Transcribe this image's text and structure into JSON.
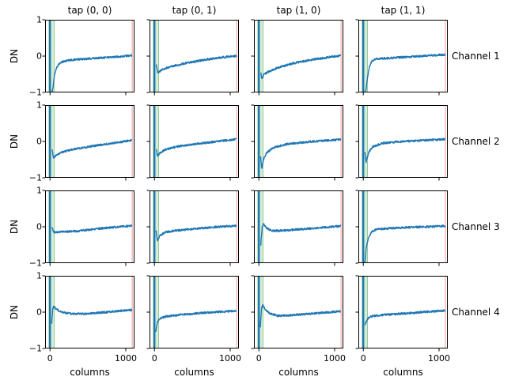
{
  "figure": {
    "col_titles": [
      "tap (0, 0)",
      "tap (0, 1)",
      "tap (1, 0)",
      "tap (1, 1)"
    ],
    "row_labels": [
      "Channel 1",
      "Channel 2",
      "Channel 3",
      "Channel 4"
    ],
    "ylabel": "DN",
    "xlabel": "columns",
    "ytick_labels": [
      "1",
      "0",
      "−1"
    ],
    "xtick_labels": [
      "0",
      "1000"
    ]
  },
  "chart_data": {
    "type": "line",
    "title": "",
    "grid": {
      "rows": 4,
      "cols": 4
    },
    "xlabel": "columns",
    "ylabel": "DN",
    "xlim": [
      -65,
      1115
    ],
    "ylim": [
      -1,
      1
    ],
    "xticks": [
      0,
      1000
    ],
    "yticks": [
      1,
      0,
      -1
    ],
    "noise_amplitude": 0.027,
    "annotations": {
      "blue_vline_x": 0,
      "green_span": [
        -15,
        55
      ],
      "red_vline_x": 1085
    },
    "colors": {
      "line": "#1f77b4",
      "spike": "#1f77b4",
      "green_fill": "rgba(44,160,44,0.20)",
      "green_edge": "rgba(44,160,44,0.45)",
      "red_line": "rgba(255,90,90,0.50)",
      "spine": "#000000",
      "text": "#000000"
    },
    "panels": [
      {
        "row": 0,
        "col": 0,
        "channel": "Channel 1",
        "tap": "tap (0, 0)",
        "points": [
          [
            20,
            -1.05
          ],
          [
            40,
            -0.85
          ],
          [
            60,
            -0.5
          ],
          [
            90,
            -0.3
          ],
          [
            140,
            -0.17
          ],
          [
            250,
            -0.11
          ],
          [
            450,
            -0.08
          ],
          [
            700,
            -0.04
          ],
          [
            950,
            -0.01
          ],
          [
            1080,
            0.02
          ]
        ]
      },
      {
        "row": 0,
        "col": 1,
        "channel": "Channel 1",
        "tap": "tap (0, 1)",
        "points": [
          [
            25,
            -0.25
          ],
          [
            45,
            -0.47
          ],
          [
            70,
            -0.42
          ],
          [
            120,
            -0.35
          ],
          [
            250,
            -0.27
          ],
          [
            450,
            -0.18
          ],
          [
            700,
            -0.09
          ],
          [
            950,
            -0.02
          ],
          [
            1080,
            0.0
          ]
        ]
      },
      {
        "row": 0,
        "col": 2,
        "channel": "Channel 1",
        "tap": "tap (1, 0)",
        "points": [
          [
            25,
            -0.45
          ],
          [
            40,
            -0.63
          ],
          [
            70,
            -0.5
          ],
          [
            120,
            -0.44
          ],
          [
            250,
            -0.32
          ],
          [
            450,
            -0.2
          ],
          [
            700,
            -0.1
          ],
          [
            950,
            -0.02
          ],
          [
            1080,
            0.02
          ]
        ]
      },
      {
        "row": 0,
        "col": 3,
        "channel": "Channel 1",
        "tap": "tap (1, 1)",
        "points": [
          [
            18,
            -1.05
          ],
          [
            35,
            -0.95
          ],
          [
            55,
            -0.6
          ],
          [
            80,
            -0.3
          ],
          [
            110,
            -0.15
          ],
          [
            160,
            -0.08
          ],
          [
            300,
            -0.06
          ],
          [
            600,
            -0.02
          ],
          [
            900,
            0.02
          ],
          [
            1080,
            0.04
          ]
        ]
      },
      {
        "row": 1,
        "col": 0,
        "channel": "Channel 2",
        "tap": "tap (0, 0)",
        "points": [
          [
            25,
            -0.2
          ],
          [
            45,
            -0.47
          ],
          [
            80,
            -0.38
          ],
          [
            150,
            -0.3
          ],
          [
            300,
            -0.22
          ],
          [
            500,
            -0.15
          ],
          [
            750,
            -0.07
          ],
          [
            950,
            -0.01
          ],
          [
            1080,
            0.04
          ]
        ]
      },
      {
        "row": 1,
        "col": 1,
        "channel": "Channel 2",
        "tap": "tap (0, 1)",
        "points": [
          [
            25,
            -0.2
          ],
          [
            40,
            -0.4
          ],
          [
            80,
            -0.3
          ],
          [
            150,
            -0.22
          ],
          [
            300,
            -0.14
          ],
          [
            500,
            -0.08
          ],
          [
            750,
            -0.02
          ],
          [
            950,
            0.03
          ],
          [
            1080,
            0.06
          ]
        ]
      },
      {
        "row": 1,
        "col": 2,
        "channel": "Channel 2",
        "tap": "tap (1, 0)",
        "points": [
          [
            22,
            -0.4
          ],
          [
            38,
            -0.75
          ],
          [
            60,
            -0.5
          ],
          [
            100,
            -0.32
          ],
          [
            180,
            -0.18
          ],
          [
            350,
            -0.08
          ],
          [
            600,
            -0.02
          ],
          [
            900,
            0.03
          ],
          [
            1080,
            0.05
          ]
        ]
      },
      {
        "row": 1,
        "col": 3,
        "channel": "Channel 2",
        "tap": "tap (1, 1)",
        "points": [
          [
            22,
            -0.3
          ],
          [
            38,
            -0.57
          ],
          [
            70,
            -0.3
          ],
          [
            120,
            -0.15
          ],
          [
            250,
            -0.05
          ],
          [
            500,
            0.0
          ],
          [
            800,
            0.03
          ],
          [
            1080,
            0.06
          ]
        ]
      },
      {
        "row": 2,
        "col": 0,
        "channel": "Channel 3",
        "tap": "tap (0, 0)",
        "points": [
          [
            25,
            -0.02
          ],
          [
            50,
            -0.15
          ],
          [
            150,
            -0.14
          ],
          [
            350,
            -0.12
          ],
          [
            600,
            -0.06
          ],
          [
            850,
            -0.01
          ],
          [
            1080,
            0.03
          ]
        ]
      },
      {
        "row": 2,
        "col": 1,
        "channel": "Channel 3",
        "tap": "tap (0, 1)",
        "points": [
          [
            22,
            -0.1
          ],
          [
            40,
            -0.37
          ],
          [
            70,
            -0.25
          ],
          [
            140,
            -0.15
          ],
          [
            300,
            -0.1
          ],
          [
            550,
            -0.05
          ],
          [
            850,
            0.0
          ],
          [
            1080,
            0.03
          ]
        ]
      },
      {
        "row": 2,
        "col": 2,
        "channel": "Channel 3",
        "tap": "tap (1, 0)",
        "points": [
          [
            25,
            -0.5
          ],
          [
            45,
            0.02
          ],
          [
            65,
            0.07
          ],
          [
            110,
            -0.05
          ],
          [
            180,
            -0.11
          ],
          [
            350,
            -0.1
          ],
          [
            600,
            -0.06
          ],
          [
            900,
            -0.01
          ],
          [
            1080,
            0.02
          ]
        ]
      },
      {
        "row": 2,
        "col": 3,
        "channel": "Channel 3",
        "tap": "tap (1, 1)",
        "points": [
          [
            20,
            -1.05
          ],
          [
            40,
            -0.55
          ],
          [
            70,
            -0.3
          ],
          [
            110,
            -0.13
          ],
          [
            180,
            -0.07
          ],
          [
            350,
            -0.04
          ],
          [
            700,
            -0.01
          ],
          [
            1080,
            0.02
          ]
        ]
      },
      {
        "row": 3,
        "col": 0,
        "channel": "Channel 4",
        "tap": "tap (0, 0)",
        "points": [
          [
            22,
            -0.3
          ],
          [
            35,
            0.08
          ],
          [
            50,
            0.15
          ],
          [
            90,
            0.07
          ],
          [
            150,
            0.0
          ],
          [
            300,
            -0.05
          ],
          [
            500,
            -0.04
          ],
          [
            750,
            0.0
          ],
          [
            950,
            0.04
          ],
          [
            1080,
            0.06
          ]
        ]
      },
      {
        "row": 3,
        "col": 1,
        "channel": "Channel 4",
        "tap": "tap (0, 1)",
        "points": [
          [
            18,
            -0.52
          ],
          [
            40,
            -0.25
          ],
          [
            80,
            -0.17
          ],
          [
            150,
            -0.12
          ],
          [
            350,
            -0.07
          ],
          [
            650,
            -0.02
          ],
          [
            950,
            0.02
          ],
          [
            1080,
            0.04
          ]
        ]
      },
      {
        "row": 3,
        "col": 2,
        "channel": "Channel 4",
        "tap": "tap (1, 0)",
        "points": [
          [
            20,
            -0.4
          ],
          [
            35,
            0.1
          ],
          [
            50,
            0.2
          ],
          [
            90,
            0.05
          ],
          [
            150,
            -0.04
          ],
          [
            250,
            -0.1
          ],
          [
            450,
            -0.08
          ],
          [
            700,
            -0.04
          ],
          [
            950,
            0.0
          ],
          [
            1080,
            0.02
          ]
        ]
      },
      {
        "row": 3,
        "col": 3,
        "channel": "Channel 4",
        "tap": "tap (1, 1)",
        "points": [
          [
            18,
            -0.35
          ],
          [
            35,
            -0.28
          ],
          [
            70,
            -0.15
          ],
          [
            120,
            -0.11
          ],
          [
            300,
            -0.07
          ],
          [
            600,
            -0.03
          ],
          [
            900,
            0.02
          ],
          [
            1080,
            0.04
          ]
        ]
      }
    ]
  }
}
